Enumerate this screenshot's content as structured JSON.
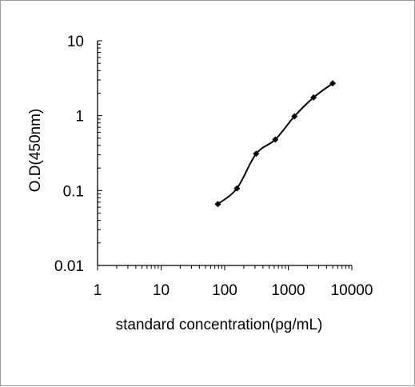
{
  "chart_data": {
    "type": "line",
    "title": "",
    "xlabel": "standard concentration(pg/mL)",
    "ylabel": "O.D(450nm)",
    "x_scale": "log",
    "y_scale": "log",
    "xlim": [
      1,
      10000
    ],
    "ylim": [
      0.01,
      10
    ],
    "x_ticks": [
      "1",
      "10",
      "100",
      "1000",
      "10000"
    ],
    "y_ticks": [
      "0.01",
      "0.1",
      "1",
      "10"
    ],
    "grid": false,
    "legend": "none",
    "series": [
      {
        "color": "#000000",
        "marker": "diamond",
        "x": [
          78,
          156,
          312,
          625,
          1250,
          2500,
          5000
        ],
        "y": [
          0.066,
          0.107,
          0.31,
          0.48,
          0.98,
          1.75,
          2.7
        ]
      }
    ]
  }
}
